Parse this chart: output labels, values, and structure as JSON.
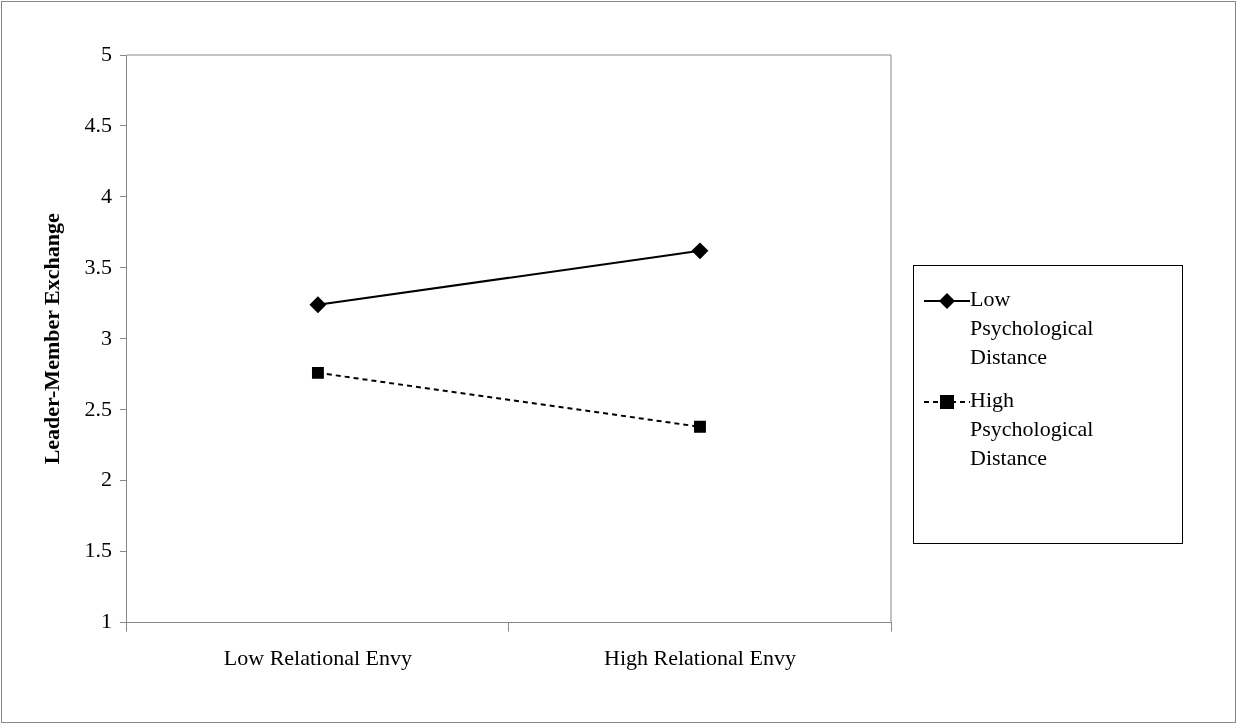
{
  "chart_data": {
    "type": "line",
    "ylabel": "Leader-Member Exchange",
    "categories": [
      "Low Relational Envy",
      "High Relational Envy"
    ],
    "series": [
      {
        "name": "Low Psychological Distance",
        "color": "#000000",
        "values": [
          3.24,
          3.62
        ],
        "marker": "diamond",
        "line_style": "solid"
      },
      {
        "name": "High Psychological Distance",
        "color": "#000000",
        "values": [
          2.76,
          2.38
        ],
        "marker": "square",
        "line_style": "dashed"
      }
    ],
    "ylim": [
      1,
      5
    ],
    "yticks": [
      1,
      1.5,
      2,
      2.5,
      3,
      3.5,
      4,
      4.5,
      5
    ],
    "grid": false,
    "legend": "right"
  }
}
